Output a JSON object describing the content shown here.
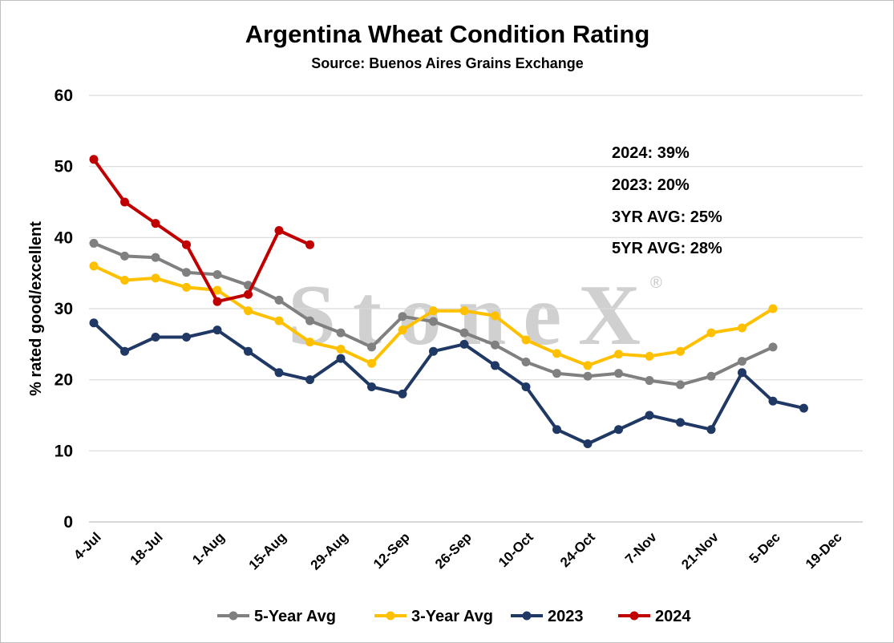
{
  "chart_data": {
    "type": "line",
    "title": "Argentina Wheat Condition Rating",
    "subtitle": "Source: Buenos Aires Grains Exchange",
    "ylabel": "% rated good/excellent",
    "xlabel": "",
    "ylim": [
      0,
      60
    ],
    "yticks": [
      0,
      10,
      20,
      30,
      40,
      50,
      60
    ],
    "grid": true,
    "legend_position": "bottom",
    "x_tick_labels": [
      "4-Jul",
      "18-Jul",
      "1-Aug",
      "15-Aug",
      "29-Aug",
      "12-Sep",
      "26-Sep",
      "10-Oct",
      "24-Oct",
      "7-Nov",
      "21-Nov",
      "5-Dec",
      "19-Dec"
    ],
    "x_weeks": [
      "4-Jul",
      "11-Jul",
      "18-Jul",
      "25-Jul",
      "1-Aug",
      "8-Aug",
      "15-Aug",
      "22-Aug",
      "29-Aug",
      "5-Sep",
      "12-Sep",
      "19-Sep",
      "26-Sep",
      "3-Oct",
      "10-Oct",
      "17-Oct",
      "24-Oct",
      "31-Oct",
      "7-Nov",
      "14-Nov",
      "21-Nov",
      "28-Nov",
      "5-Dec",
      "12-Dec",
      "19-Dec"
    ],
    "series": [
      {
        "name": "5-Year Avg",
        "color": "#808080",
        "values": [
          39.2,
          37.4,
          37.2,
          35.1,
          34.8,
          33.3,
          31.2,
          28.3,
          26.6,
          24.6,
          28.9,
          28.2,
          26.6,
          24.9,
          22.5,
          20.9,
          20.5,
          20.9,
          19.9,
          19.3,
          20.5,
          22.6,
          24.6
        ]
      },
      {
        "name": "3-Year Avg",
        "color": "#ffc000",
        "values": [
          36.0,
          34.0,
          34.3,
          33.0,
          32.6,
          29.7,
          28.3,
          25.3,
          24.3,
          22.3,
          27.0,
          29.7,
          29.7,
          29.0,
          25.6,
          23.7,
          22.0,
          23.6,
          23.3,
          24.0,
          26.6,
          27.3,
          30.0
        ]
      },
      {
        "name": "2023",
        "color": "#1f3864",
        "values": [
          28,
          24,
          26,
          26,
          27,
          24,
          21,
          20,
          23,
          19,
          18,
          24,
          25,
          22,
          19,
          13,
          11,
          13,
          15,
          14,
          13,
          21,
          17,
          16
        ]
      },
      {
        "name": "2024",
        "color": "#c00000",
        "values": [
          51,
          45,
          42,
          39,
          31,
          32,
          41,
          39
        ]
      }
    ],
    "annotations": [
      "2024: 39%",
      "2023: 20%",
      "3YR AVG: 25%",
      "5YR AVG: 28%"
    ],
    "watermark": "StoneX",
    "watermark_mark": "®"
  }
}
